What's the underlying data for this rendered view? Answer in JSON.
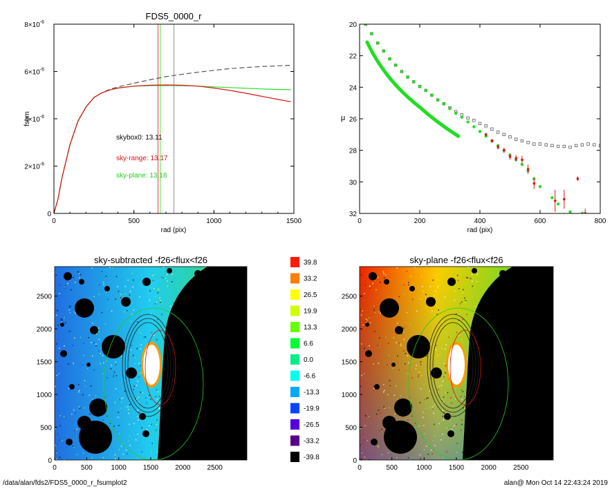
{
  "footer": {
    "path": "/data/alan/fds2/FDS5_0000_r_fsumplot2",
    "user_time": "alan@  Mon Oct 14 22:43:24 2019"
  },
  "colors": {
    "black": "#000000",
    "red": "#dd1111",
    "green": "#22dd22",
    "grey": "#777777",
    "dashed": "#555555"
  },
  "chart_data": [
    {
      "type": "line",
      "title": "FDS5_0000_r",
      "xlabel": "rad (pix)",
      "ylabel": "fsum",
      "xlim": [
        0,
        1500
      ],
      "ylim": [
        0,
        8e-06
      ],
      "xticks": [
        "0",
        "500",
        "1000",
        "1500"
      ],
      "yticks": [
        {
          "mant": "0",
          "exp": ""
        },
        {
          "mant": "2×10",
          "exp": "-6"
        },
        {
          "mant": "4×10",
          "exp": "-6"
        },
        {
          "mant": "6×10",
          "exp": "-6"
        },
        {
          "mant": "8×10",
          "exp": "-6"
        }
      ],
      "vlines": [
        {
          "x": 650,
          "color": "red"
        },
        {
          "x": 665,
          "color": "green"
        },
        {
          "x": 750,
          "color": "grey"
        }
      ],
      "annotations": [
        {
          "text": "skybox0: 13.11",
          "color": "black"
        },
        {
          "text": "sky-range: 13.17",
          "color": "red"
        },
        {
          "text": "sky-plane: 13.18",
          "color": "green"
        }
      ],
      "series": [
        {
          "color": "dashed",
          "style": "dashed",
          "x": [
            0,
            25,
            50,
            100,
            150,
            200,
            250,
            300,
            350,
            400,
            500,
            600,
            700,
            800,
            900,
            1000,
            1100,
            1200,
            1300,
            1400,
            1480
          ],
          "y": [
            0,
            6e-07,
            1.5e-06,
            2.9e-06,
            3.9e-06,
            4.5e-06,
            4.9e-06,
            5.1e-06,
            5.25e-06,
            5.35e-06,
            5.5e-06,
            5.65e-06,
            5.78e-06,
            5.88e-06,
            5.97e-06,
            6.05e-06,
            6.12e-06,
            6.17e-06,
            6.21e-06,
            6.24e-06,
            6.26e-06
          ]
        },
        {
          "color": "green",
          "x": [
            0,
            25,
            50,
            100,
            150,
            200,
            250,
            300,
            350,
            400,
            500,
            600,
            700,
            800,
            900,
            1000,
            1100,
            1200,
            1300,
            1400,
            1480
          ],
          "y": [
            0,
            6e-07,
            1.5e-06,
            2.9e-06,
            3.9e-06,
            4.5e-06,
            4.9e-06,
            5.1e-06,
            5.22e-06,
            5.3e-06,
            5.38e-06,
            5.4e-06,
            5.41e-06,
            5.4e-06,
            5.38e-06,
            5.35e-06,
            5.32e-06,
            5.29e-06,
            5.26e-06,
            5.24e-06,
            5.23e-06
          ]
        },
        {
          "color": "red",
          "x": [
            0,
            25,
            50,
            100,
            150,
            200,
            250,
            300,
            350,
            400,
            500,
            600,
            700,
            800,
            900,
            1000,
            1100,
            1200,
            1300,
            1400,
            1480
          ],
          "y": [
            0,
            6e-07,
            1.5e-06,
            2.9e-06,
            3.9e-06,
            4.5e-06,
            4.9e-06,
            5.1e-06,
            5.22e-06,
            5.3e-06,
            5.38e-06,
            5.42e-06,
            5.43e-06,
            5.42e-06,
            5.38e-06,
            5.3e-06,
            5.2e-06,
            5.08e-06,
            4.95e-06,
            4.82e-06,
            4.72e-06
          ]
        }
      ]
    },
    {
      "type": "scatter",
      "title": "",
      "xlabel": "rad (pix)",
      "ylabel": "μ",
      "xlim": [
        0,
        800
      ],
      "ylim": [
        32,
        20
      ],
      "xticks": [
        "0",
        "200",
        "400",
        "600",
        "800"
      ],
      "yticks": [
        "20",
        "22",
        "24",
        "26",
        "28",
        "30",
        "32"
      ],
      "series": [
        {
          "color": "black",
          "marker": "open-square",
          "x": [
            20,
            40,
            60,
            80,
            100,
            120,
            140,
            160,
            180,
            200,
            220,
            240,
            260,
            280,
            300,
            320,
            340,
            360,
            380,
            400,
            420,
            440,
            460,
            480,
            500,
            520,
            540,
            560,
            580,
            600,
            620,
            640,
            660,
            680,
            700,
            720,
            740,
            760,
            780,
            800
          ],
          "y": [
            20,
            20.6,
            21.2,
            21.7,
            22.2,
            22.6,
            23.0,
            23.35,
            23.65,
            23.95,
            24.2,
            24.5,
            24.8,
            25.05,
            25.3,
            25.55,
            25.75,
            25.95,
            26.1,
            26.3,
            26.45,
            26.65,
            26.85,
            27.0,
            27.15,
            27.3,
            27.4,
            27.5,
            27.6,
            27.6,
            27.65,
            27.7,
            27.75,
            27.75,
            27.8,
            27.7,
            27.65,
            27.6,
            27.65,
            27.7
          ]
        },
        {
          "color": "green",
          "marker": "dot",
          "x": [
            20,
            40,
            60,
            80,
            100,
            120,
            140,
            160,
            180,
            200,
            220,
            240,
            260,
            280,
            300,
            320,
            340,
            360,
            380,
            400,
            420,
            440,
            460,
            480,
            500,
            520,
            540,
            560,
            580,
            600,
            640,
            660,
            700,
            740
          ],
          "y": [
            20,
            20.6,
            21.2,
            21.7,
            22.2,
            22.6,
            23.0,
            23.35,
            23.65,
            23.95,
            24.2,
            24.5,
            24.8,
            25.05,
            25.35,
            25.65,
            25.9,
            26.2,
            26.5,
            26.8,
            27.1,
            27.4,
            27.7,
            28.0,
            28.3,
            28.6,
            28.9,
            29.3,
            29.8,
            30.3,
            31.0,
            31.4,
            31.9,
            32.0
          ]
        },
        {
          "color": "red",
          "marker": "errorbar",
          "x": [
            420,
            440,
            460,
            480,
            500,
            520,
            540,
            560,
            580,
            650,
            680,
            725,
            750
          ],
          "y": [
            27.0,
            27.4,
            27.8,
            28.0,
            28.4,
            28.5,
            28.6,
            29.2,
            30.1,
            31.2,
            31.1,
            29.8,
            32.0
          ],
          "err": [
            0.1,
            0.12,
            0.15,
            0.18,
            0.2,
            0.2,
            0.25,
            0.3,
            0.35,
            0.7,
            0.6,
            0.15,
            0.3
          ]
        }
      ]
    },
    {
      "type": "heatmap",
      "title": "sky-subtracted -f26<flux<f26",
      "xticks": [
        "0",
        "500",
        "1000",
        "1500",
        "2000",
        "2500"
      ],
      "yticks": [
        "0",
        "500",
        "1000",
        "1500",
        "2000",
        "2500"
      ],
      "xlim": [
        0,
        3000
      ],
      "ylim": [
        0,
        2950
      ],
      "gradient": [
        "#1f6fe0",
        "#22ccee",
        "#33dd55"
      ]
    },
    {
      "type": "heatmap",
      "title": "sky-plane -f26<flux<f26",
      "xticks": [
        "0",
        "500",
        "1000",
        "1500",
        "2000",
        "2500"
      ],
      "yticks": [
        "0",
        "500",
        "1000",
        "1500",
        "2000",
        "2500"
      ],
      "xlim": [
        0,
        3000
      ],
      "ylim": [
        0,
        2950
      ],
      "gradient": [
        "#ee2200",
        "#ffcc00",
        "#33dd33"
      ]
    },
    {
      "type": "colorbar",
      "labels": [
        "39.8",
        "33.2",
        "26.5",
        "19.9",
        "13.3",
        "6.6",
        "0.0",
        "-6.6",
        "-13.3",
        "-19.9",
        "-26.5",
        "-33.2",
        "-39.8"
      ],
      "colors": [
        "#ff1a00",
        "#ff7f00",
        "#ffff00",
        "#ccff00",
        "#66ff00",
        "#00ff33",
        "#00ee88",
        "#00ffee",
        "#00aaff",
        "#0044ff",
        "#5500dd",
        "#550088",
        "#000000"
      ]
    }
  ]
}
